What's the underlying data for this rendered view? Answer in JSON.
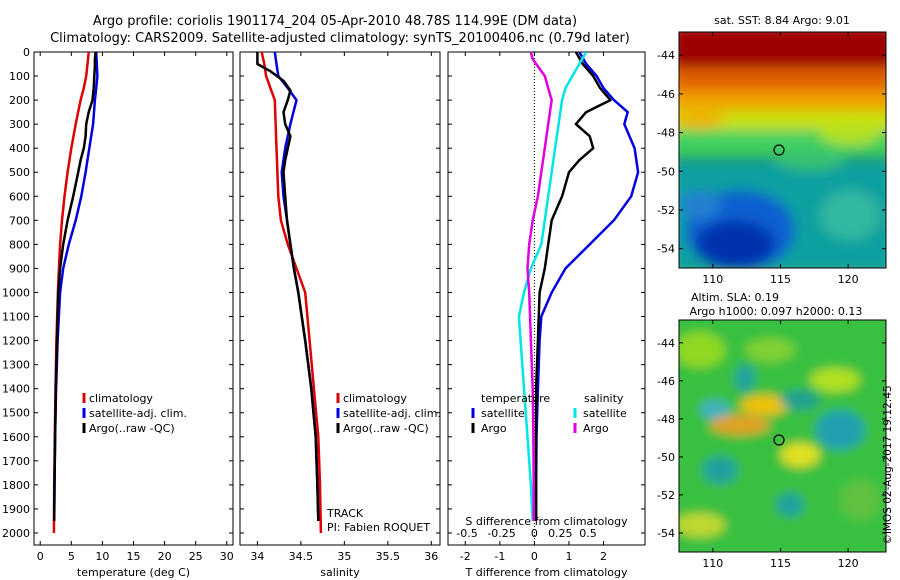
{
  "header": {
    "line1": "Argo profile: coriolis 1901174_204 05-Apr-2010 48.78S 114.99E (DM data)",
    "line2": "Climatology: CARS2009. Satellite-adjusted climatology: synTS_20100406.nc (0.79d later)"
  },
  "watermark": "©IMOS 02-Aug-2017 19:12:45",
  "colors": {
    "climatology": "#e00000",
    "satellite": "#0000e0",
    "argo": "#000000",
    "sat_s": "#00e5e5",
    "argo_s": "#e000e0"
  },
  "chart_data": [
    {
      "type": "line",
      "id": "temperature",
      "xlabel": "temperature (deg C)",
      "ylabel": "",
      "xlim": [
        -1,
        31
      ],
      "ylim": [
        2050,
        0
      ],
      "y_inverted": true,
      "xticks": [
        0,
        5,
        10,
        15,
        20,
        25,
        30
      ],
      "yticks": [
        0,
        100,
        200,
        300,
        400,
        500,
        600,
        700,
        800,
        900,
        1000,
        1100,
        1200,
        1300,
        1400,
        1500,
        1600,
        1700,
        1800,
        1900,
        2000
      ],
      "legend": {
        "placement": "lower-middle",
        "entries": [
          {
            "label": "climatology",
            "color": "#e00000"
          },
          {
            "label": "satellite-adj. clim.",
            "color": "#0000e0"
          },
          {
            "label": "Argo(..raw -QC)",
            "color": "#000000"
          }
        ]
      },
      "series": [
        {
          "name": "climatology",
          "color": "#e00000",
          "y": [
            0,
            50,
            100,
            150,
            200,
            300,
            400,
            500,
            600,
            700,
            800,
            900,
            1000,
            1200,
            1400,
            1600,
            1800,
            2000
          ],
          "x": [
            7.8,
            7.6,
            7.4,
            7.0,
            6.5,
            5.7,
            5.0,
            4.4,
            3.9,
            3.5,
            3.2,
            3.0,
            2.85,
            2.6,
            2.45,
            2.35,
            2.25,
            2.2
          ]
        },
        {
          "name": "satellite-adj. clim.",
          "color": "#0000e0",
          "y": [
            0,
            50,
            100,
            150,
            200,
            300,
            400,
            500,
            600,
            700,
            800,
            900,
            1000,
            1200,
            1400,
            1600,
            1800,
            1950
          ],
          "x": [
            9.0,
            9.1,
            9.2,
            9.0,
            8.8,
            8.5,
            7.9,
            7.3,
            6.6,
            5.7,
            4.6,
            3.7,
            3.2,
            2.8,
            2.55,
            2.4,
            2.3,
            2.25
          ]
        },
        {
          "name": "Argo(..raw -QC)",
          "color": "#000000",
          "y": [
            0,
            30,
            60,
            100,
            150,
            200,
            250,
            300,
            350,
            400,
            450,
            500,
            600,
            700,
            800,
            900,
            1000,
            1200,
            1400,
            1600,
            1800,
            1950
          ],
          "x": [
            8.9,
            8.8,
            8.8,
            8.7,
            8.6,
            8.4,
            7.8,
            7.4,
            7.3,
            7.0,
            6.5,
            6.1,
            5.3,
            4.4,
            3.7,
            3.2,
            2.9,
            2.7,
            2.5,
            2.4,
            2.3,
            2.25
          ]
        }
      ]
    },
    {
      "type": "line",
      "id": "salinity",
      "xlabel": "salinity",
      "xlim": [
        33.8,
        36.1
      ],
      "ylim": [
        2050,
        0
      ],
      "y_inverted": true,
      "xticks": [
        34,
        34.5,
        35,
        35.5,
        36
      ],
      "legend": {
        "placement": "lower-right",
        "entries": [
          {
            "label": "climatology",
            "color": "#e00000"
          },
          {
            "label": "satellite-adj. clim.",
            "color": "#0000e0"
          },
          {
            "label": "Argo(..raw -QC)",
            "color": "#000000"
          }
        ]
      },
      "annotations": [
        "TRACK",
        "PI: Fabien ROQUET"
      ],
      "series": [
        {
          "name": "climatology",
          "color": "#e00000",
          "y": [
            0,
            50,
            100,
            150,
            200,
            400,
            600,
            700,
            800,
            900,
            1000,
            1200,
            1400,
            1600,
            1800,
            2000
          ],
          "x": [
            34.05,
            34.08,
            34.1,
            34.15,
            34.2,
            34.22,
            34.24,
            34.27,
            34.35,
            34.45,
            34.55,
            34.6,
            34.65,
            34.7,
            34.72,
            34.73
          ]
        },
        {
          "name": "satellite-adj. clim.",
          "color": "#0000e0",
          "y": [
            0,
            50,
            100,
            150,
            200,
            300,
            400,
            500,
            600,
            700,
            800,
            900,
            1000,
            1200,
            1400,
            1600,
            1800,
            1950
          ],
          "x": [
            34.2,
            34.22,
            34.24,
            34.35,
            34.45,
            34.38,
            34.32,
            34.28,
            34.3,
            34.34,
            34.38,
            34.42,
            34.47,
            34.55,
            34.62,
            34.67,
            34.69,
            34.7
          ]
        },
        {
          "name": "Argo(..raw -QC)",
          "color": "#000000",
          "y": [
            0,
            50,
            80,
            120,
            160,
            200,
            250,
            300,
            350,
            400,
            450,
            500,
            600,
            700,
            800,
            900,
            1000,
            1200,
            1400,
            1600,
            1800,
            1950
          ],
          "x": [
            34.0,
            34.0,
            34.15,
            34.3,
            34.38,
            34.35,
            34.3,
            34.32,
            34.38,
            34.35,
            34.32,
            34.3,
            34.32,
            34.34,
            34.38,
            34.42,
            34.47,
            34.55,
            34.62,
            34.67,
            34.69,
            34.7
          ]
        }
      ]
    },
    {
      "type": "line",
      "id": "difference",
      "xlabel": "T difference from climatology",
      "xlabel_top": "S difference from climatology",
      "xlim": [
        -2.5,
        3.2
      ],
      "ylim": [
        2050,
        0
      ],
      "y_inverted": true,
      "xticks": [
        -2,
        -1,
        0,
        1,
        2
      ],
      "s_ticks": [
        {
          "label": "-0.5",
          "at": -1.95
        },
        {
          "label": "-0.25",
          "at": -0.95
        },
        {
          "label": "0",
          "at": 0.0
        },
        {
          "label": "0.25",
          "at": 0.75
        },
        {
          "label": "0.5",
          "at": 1.55
        }
      ],
      "legend": {
        "placement": "lower-middle",
        "col1_title": "temperature",
        "col2_title": "salinity",
        "entries": [
          {
            "label": "satellite",
            "color": "#0000e0"
          },
          {
            "label": "Argo",
            "color": "#000000"
          },
          {
            "label": "satellite",
            "color": "#00e5e5"
          },
          {
            "label": "Argo",
            "color": "#e000e0"
          }
        ]
      },
      "series": [
        {
          "name": "satellite",
          "color": "#0000e0",
          "y": [
            0,
            50,
            100,
            150,
            200,
            250,
            300,
            400,
            500,
            600,
            700,
            800,
            900,
            1000,
            1100,
            1200,
            1400,
            1600,
            1800,
            1950
          ],
          "x": [
            1.3,
            1.5,
            1.8,
            2.0,
            2.3,
            2.7,
            2.6,
            2.9,
            3.0,
            2.8,
            2.3,
            1.6,
            0.9,
            0.5,
            0.2,
            0.15,
            0.1,
            0.06,
            0.05,
            0.05
          ]
        },
        {
          "name": "Argo",
          "color": "#000000",
          "y": [
            0,
            50,
            100,
            150,
            200,
            250,
            300,
            350,
            400,
            450,
            500,
            550,
            600,
            700,
            800,
            900,
            1000,
            1200,
            1400,
            1600,
            1800,
            1950
          ],
          "x": [
            1.2,
            1.4,
            1.7,
            1.9,
            2.2,
            1.5,
            1.2,
            1.6,
            1.7,
            1.3,
            1.0,
            0.9,
            0.8,
            0.5,
            0.4,
            0.3,
            0.15,
            0.1,
            0.05,
            0.05,
            0.05,
            0.05
          ]
        },
        {
          "name": "satellite",
          "color": "#00e5e5",
          "y": [
            0,
            50,
            100,
            150,
            200,
            300,
            400,
            500,
            600,
            700,
            800,
            900,
            1000,
            1100,
            1200,
            1400,
            1600,
            1800,
            1950
          ],
          "x": [
            1.5,
            1.3,
            1.1,
            0.9,
            0.8,
            0.7,
            0.6,
            0.5,
            0.4,
            0.3,
            0.2,
            -0.1,
            -0.3,
            -0.45,
            -0.4,
            -0.3,
            -0.2,
            -0.1,
            -0.05
          ]
        },
        {
          "name": "Argo",
          "color": "#e000e0",
          "y": [
            0,
            30,
            60,
            100,
            150,
            200,
            300,
            400,
            500,
            600,
            700,
            800,
            900,
            1000,
            1200,
            1400,
            1600,
            1800,
            1950
          ],
          "x": [
            -0.1,
            -0.05,
            0.1,
            0.3,
            0.4,
            0.5,
            0.4,
            0.3,
            0.2,
            0.1,
            -0.05,
            -0.15,
            -0.2,
            -0.15,
            -0.1,
            -0.05,
            -0.03,
            -0.02,
            -0.02
          ]
        }
      ]
    },
    {
      "type": "heatmap",
      "id": "sst_map",
      "title": "sat. SST: 8.84  Argo: 9.01",
      "xlim": [
        107.5,
        122.8
      ],
      "ylim": [
        -55,
        -42.8
      ],
      "xticks": [
        110,
        115,
        120
      ],
      "yticks": [
        -44,
        -46,
        -48,
        -50,
        -52,
        -54
      ],
      "marker": {
        "lon": 115,
        "lat": -48.8
      }
    },
    {
      "type": "heatmap",
      "id": "sla_map",
      "title": "Altim. SLA: 0.19",
      "subtitle": "Argo h1000: 0.097 h2000: 0.13",
      "xlim": [
        107.5,
        122.8
      ],
      "ylim": [
        -55,
        -42.8
      ],
      "xticks": [
        110,
        115,
        120
      ],
      "yticks": [
        -44,
        -46,
        -48,
        -50,
        -52,
        -54
      ],
      "marker": {
        "lon": 115,
        "lat": -48.8
      }
    }
  ]
}
